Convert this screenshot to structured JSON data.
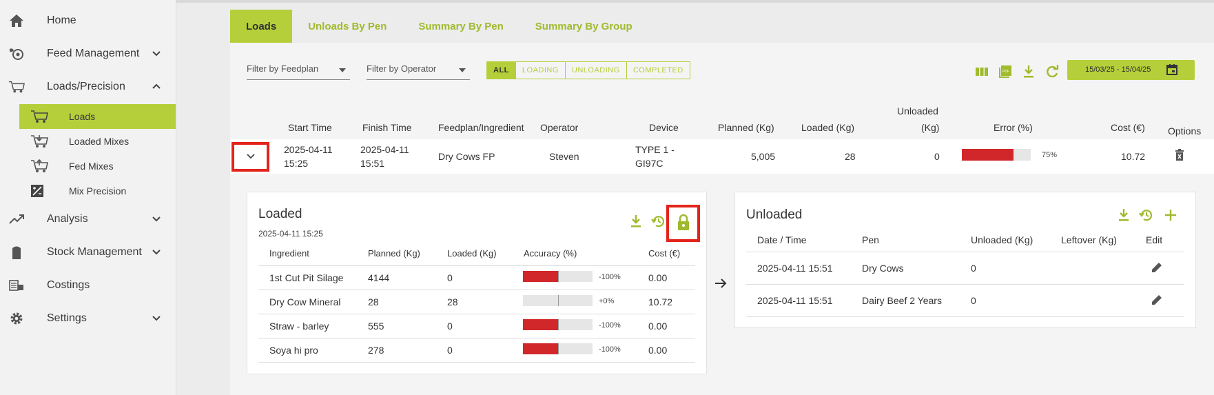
{
  "sidebar": {
    "items": [
      {
        "label": "Home",
        "icon": "home-icon"
      },
      {
        "label": "Feed Management",
        "icon": "feed-icon"
      },
      {
        "label": "Loads/Precision",
        "icon": "wagon-icon"
      },
      {
        "label": "Analysis",
        "icon": "trend-icon"
      },
      {
        "label": "Stock Management",
        "icon": "silo-icon"
      },
      {
        "label": "Costings",
        "icon": "costings-icon"
      },
      {
        "label": "Settings",
        "icon": "gear-icon"
      }
    ],
    "subitems": [
      {
        "label": "Loads",
        "icon": "wagon-icon"
      },
      {
        "label": "Loaded Mixes",
        "icon": "loaded-mixes-icon"
      },
      {
        "label": "Fed Mixes",
        "icon": "fed-mixes-icon"
      },
      {
        "label": "Mix Precision",
        "icon": "precision-icon"
      }
    ]
  },
  "tabs": [
    "Loads",
    "Unloads By Pen",
    "Summary By Pen",
    "Summary By Group"
  ],
  "filters": {
    "feedplan_placeholder": "Filter by Feedplan",
    "operator_placeholder": "Filter by Operator",
    "segments": [
      "ALL",
      "LOADING",
      "UNLOADING",
      "COMPLETED"
    ],
    "date_range": "15/03/25 - 15/04/25"
  },
  "table": {
    "headers": {
      "start": "Start Time",
      "finish": "Finish Time",
      "feedplan": "Feedplan/Ingredient",
      "operator": "Operator",
      "device": "Device",
      "planned": "Planned (Kg)",
      "loaded": "Loaded (Kg)",
      "unloaded_1": "Unloaded",
      "unloaded_2": "(Kg)",
      "error": "Error (%)",
      "cost": "Cost (€)",
      "options": "Options"
    },
    "row": {
      "start_date": "2025-04-11",
      "start_time": "15:25",
      "finish_date": "2025-04-11",
      "finish_time": "15:51",
      "feedplan": "Dry Cows FP",
      "operator": "Steven",
      "device_1": "TYPE 1 -",
      "device_2": "GI97C",
      "planned": "5,005",
      "loaded": "28",
      "unloaded": "0",
      "error_pct": "75%",
      "error_fraction": 0.75,
      "cost": "10.72"
    }
  },
  "loaded_card": {
    "title": "Loaded",
    "timestamp": "2025-04-11 15:25",
    "headers": {
      "ingredient": "Ingredient",
      "planned": "Planned (Kg)",
      "loaded": "Loaded (Kg)",
      "accuracy": "Accuracy (%)",
      "cost": "Cost (€)"
    },
    "rows": [
      {
        "ingredient": "1st Cut Pit Silage",
        "planned": "4144",
        "loaded": "0",
        "accuracy": "-100%",
        "accuracy_value": -100,
        "cost": "0.00"
      },
      {
        "ingredient": "Dry Cow Mineral",
        "planned": "28",
        "loaded": "28",
        "accuracy": "+0%",
        "accuracy_value": 0,
        "cost": "10.72"
      },
      {
        "ingredient": "Straw - barley",
        "planned": "555",
        "loaded": "0",
        "accuracy": "-100%",
        "accuracy_value": -100,
        "cost": "0.00"
      },
      {
        "ingredient": "Soya hi pro",
        "planned": "278",
        "loaded": "0",
        "accuracy": "-100%",
        "accuracy_value": -100,
        "cost": "0.00"
      }
    ]
  },
  "unloaded_card": {
    "title": "Unloaded",
    "headers": {
      "datetime": "Date / Time",
      "pen": "Pen",
      "unloaded": "Unloaded (Kg)",
      "leftover": "Leftover (Kg)",
      "edit": "Edit"
    },
    "rows": [
      {
        "datetime": "2025-04-11 15:51",
        "pen": "Dry Cows",
        "unloaded": "0"
      },
      {
        "datetime": "2025-04-11 15:51",
        "pen": "Dairy Beef 2 Years",
        "unloaded": "0"
      }
    ]
  },
  "colors": {
    "accent": "#b5cf3a",
    "accent_text": "#a0ba2d",
    "error": "#d2272a",
    "highlight": "#e3241b"
  }
}
